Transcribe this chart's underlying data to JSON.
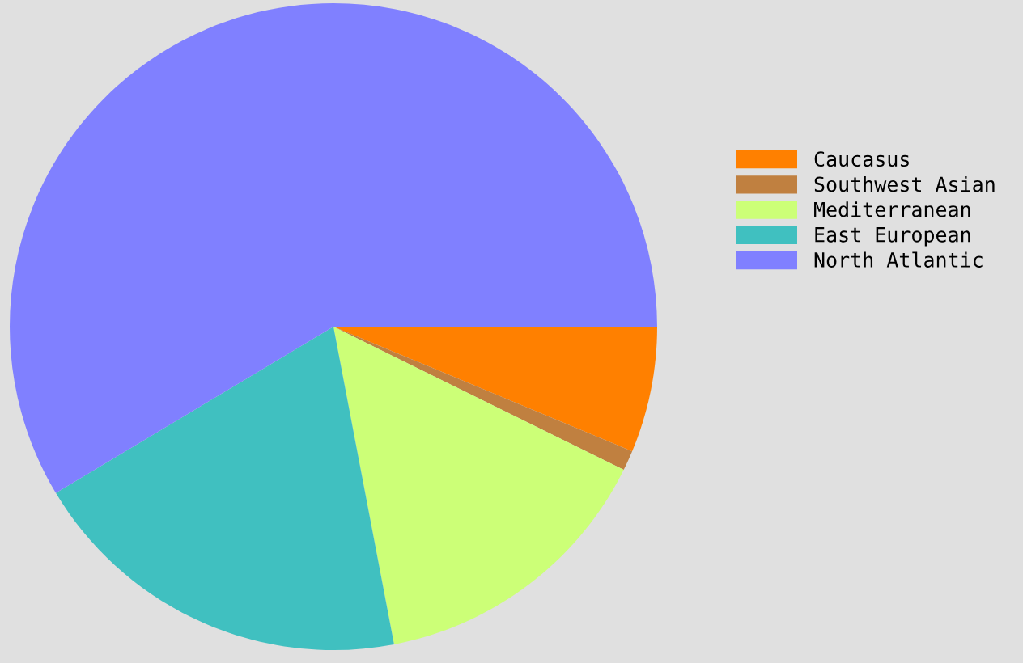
{
  "chart_data": {
    "type": "pie",
    "categories": [
      "Caucasus",
      "Southwest Asian",
      "Mediterranean",
      "East European",
      "North Atlantic"
    ],
    "values": [
      6.3,
      1.0,
      14.7,
      19.4,
      58.6
    ],
    "colors": [
      "#ff8000",
      "#c08040",
      "#ccff77",
      "#40c0c0",
      "#8080ff"
    ],
    "legend": "right"
  }
}
